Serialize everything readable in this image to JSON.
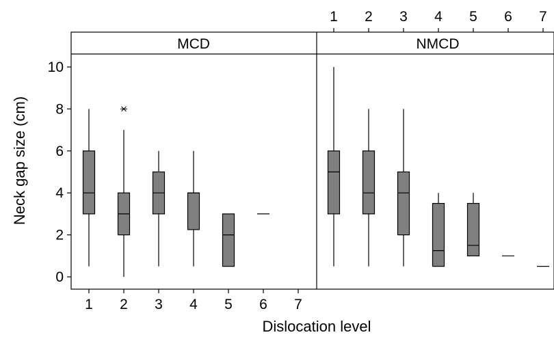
{
  "chart_data": {
    "type": "box",
    "ylabel": "Neck gap size (cm)",
    "xlabel": "Dislocation level",
    "ylim": [
      -0.3,
      10.6
    ],
    "yticks": [
      0,
      2,
      4,
      6,
      8,
      10
    ],
    "categories": [
      "1",
      "2",
      "3",
      "4",
      "5",
      "6",
      "7"
    ],
    "colors": {
      "box_fill": "#808080",
      "line": "#000000",
      "background": "#ffffff"
    },
    "panels": [
      {
        "title": "MCD",
        "boxes": [
          {
            "category": "1",
            "min": 0.5,
            "q1": 3,
            "median": 4,
            "q3": 6,
            "max": 8
          },
          {
            "category": "2",
            "min": 0,
            "q1": 2,
            "median": 3,
            "q3": 4,
            "max": 7,
            "outliers": [
              8
            ]
          },
          {
            "category": "3",
            "min": 0.5,
            "q1": 3,
            "median": 4,
            "q3": 5,
            "max": 6
          },
          {
            "category": "4",
            "min": 0.5,
            "q1": 2.25,
            "median": 4,
            "q3": 4,
            "max": 6
          },
          {
            "category": "5",
            "min": 0.5,
            "q1": 0.5,
            "median": 2,
            "q3": 3,
            "max": 3
          },
          {
            "category": "6",
            "min": 3,
            "q1": 3,
            "median": 3,
            "q3": 3,
            "max": 3
          }
        ]
      },
      {
        "title": "NMCD",
        "boxes": [
          {
            "category": "1",
            "min": 0.5,
            "q1": 3,
            "median": 5,
            "q3": 6,
            "max": 10
          },
          {
            "category": "2",
            "min": 0.5,
            "q1": 3,
            "median": 4,
            "q3": 6,
            "max": 8
          },
          {
            "category": "3",
            "min": 0.5,
            "q1": 2,
            "median": 4,
            "q3": 5,
            "max": 8
          },
          {
            "category": "4",
            "min": 0.5,
            "q1": 0.5,
            "median": 1.25,
            "q3": 3.5,
            "max": 4
          },
          {
            "category": "5",
            "min": 1,
            "q1": 1,
            "median": 1.5,
            "q3": 3.5,
            "max": 4
          },
          {
            "category": "6",
            "min": 1,
            "q1": 1,
            "median": 1,
            "q3": 1,
            "max": 1
          },
          {
            "category": "7",
            "min": 0.5,
            "q1": 0.5,
            "median": 0.5,
            "q3": 0.5,
            "max": 0.5
          }
        ]
      }
    ]
  }
}
